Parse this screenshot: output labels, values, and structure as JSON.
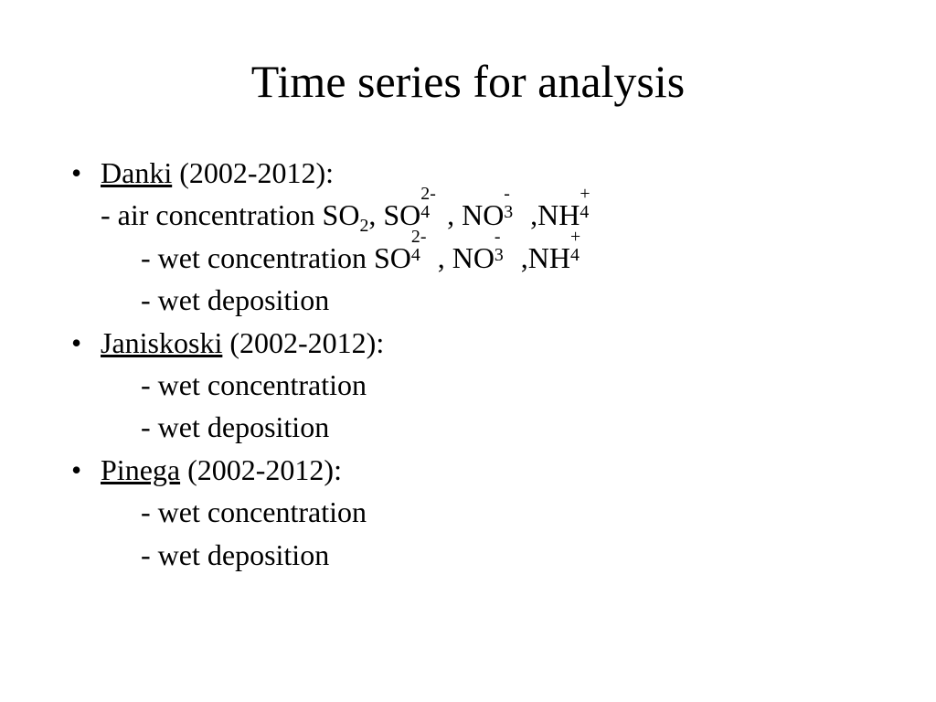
{
  "title": "Time series for analysis",
  "title_fontsize": 50,
  "body_fontsize": 32,
  "background_color": "#ffffff",
  "text_color": "#000000",
  "font_family": "Times New Roman",
  "stations": [
    {
      "name": "Danki",
      "period": "(2002-2012):",
      "items": [
        {
          "prefix": "- air concentration ",
          "species": [
            "SO2",
            "SO4^2-",
            "NO3^-",
            "NH4^+"
          ]
        },
        {
          "prefix": "- wet concentration ",
          "species": [
            "SO4^2-",
            "NO3^-",
            "NH4^+"
          ]
        },
        {
          "prefix": "- wet deposition",
          "species": []
        }
      ]
    },
    {
      "name": "Janiskoski",
      "period": "(2002-2012):",
      "items": [
        {
          "prefix": "- wet concentration",
          "species": []
        },
        {
          "prefix": "- wet deposition",
          "species": []
        }
      ]
    },
    {
      "name": "Pinega",
      "period": "(2002-2012):",
      "items": [
        {
          "prefix": "- wet concentration",
          "species": []
        },
        {
          "prefix": "- wet deposition",
          "species": []
        }
      ]
    }
  ]
}
